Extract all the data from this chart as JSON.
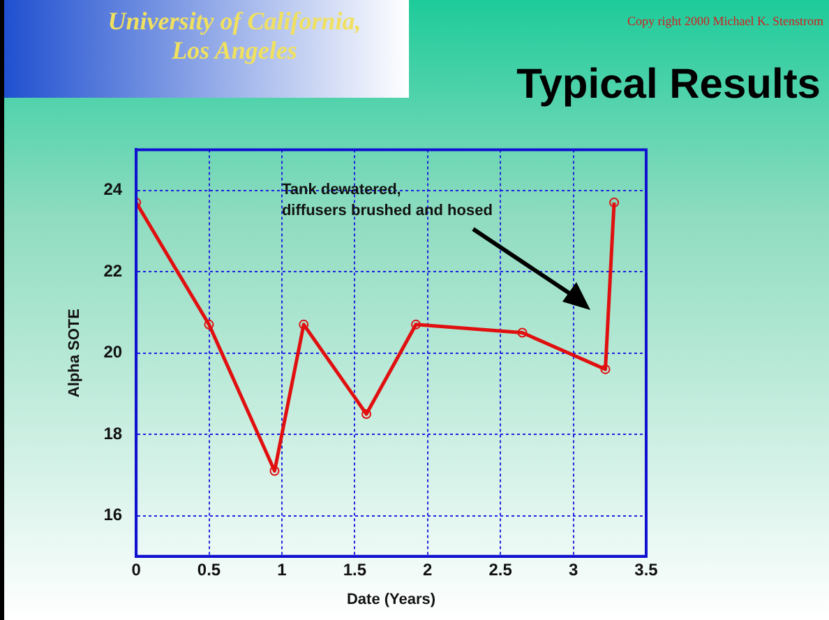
{
  "chart_data": {
    "type": "line",
    "title": "Typical Results",
    "xlabel": "Date (Years)",
    "ylabel": "Alpha SOTE",
    "annotations": [
      "University of California,\nLos Angeles",
      "Copy right 2000 Michael K. Stenstrom",
      "Tank dewatered,\ndiffusers brushed and hosed"
    ],
    "series": [
      {
        "color": "#e01010",
        "x": [
          0,
          0.5,
          0.95,
          1.15,
          1.58,
          1.92,
          2.65,
          3.22,
          3.28
        ],
        "values": [
          23.7,
          20.7,
          17.1,
          20.7,
          18.5,
          20.7,
          20.5,
          19.6,
          23.7
        ]
      }
    ],
    "xlim": [
      0,
      3.5
    ],
    "xticks": [
      0,
      0.5,
      1,
      1.5,
      2,
      2.5,
      3,
      3.5
    ],
    "ylim": [
      15,
      25
    ],
    "yticks": [
      16,
      18,
      20,
      22,
      24
    ],
    "grid": true,
    "marker": "circle",
    "line_style": "solid"
  }
}
